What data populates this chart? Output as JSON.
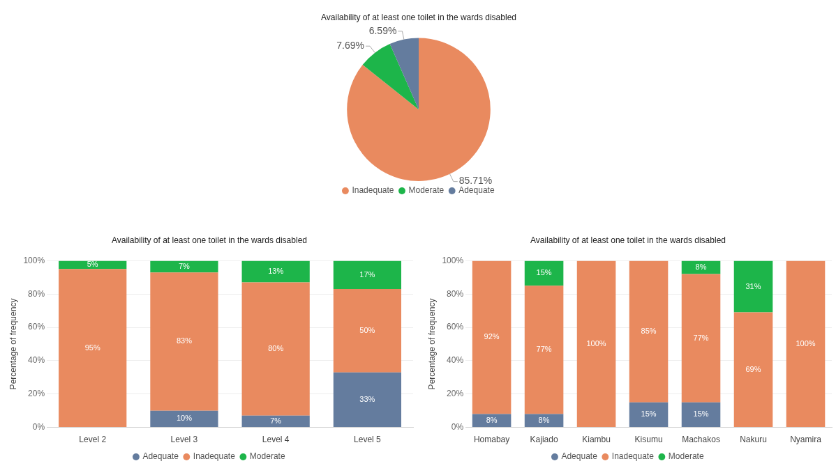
{
  "chart_data": [
    {
      "type": "pie",
      "title": "Availability of at least one toilet in the wards disabled",
      "categories": [
        "Inadequate",
        "Moderate",
        "Adequate"
      ],
      "values": [
        85.71,
        7.69,
        6.59
      ],
      "colors": [
        "#e98a5f",
        "#1db54a",
        "#647c9e"
      ],
      "value_labels": [
        "85.71%",
        "7.69%",
        "6.59%"
      ],
      "legend": "bottom"
    },
    {
      "type": "bar",
      "stacked": true,
      "title": "Availability of at least one toilet in the wards disabled",
      "ylabel": "Percentage of frequency",
      "categories": [
        "Level 2",
        "Level 3",
        "Level 4",
        "Level 5"
      ],
      "ylim": [
        0,
        100
      ],
      "yticks": [
        {
          "value": 0,
          "label": "0%"
        },
        {
          "value": 20,
          "label": "20%"
        },
        {
          "value": 40,
          "label": "40%"
        },
        {
          "value": 60,
          "label": "60%"
        },
        {
          "value": 80,
          "label": "80%"
        },
        {
          "value": 100,
          "label": "100%"
        }
      ],
      "grid": "y",
      "legend": "bottom",
      "series": [
        {
          "name": "Adequate",
          "color": "#647c9e",
          "values": [
            null,
            10,
            7,
            33
          ],
          "value_labels": [
            null,
            "10%",
            "7%",
            "33%"
          ]
        },
        {
          "name": "Inadequate",
          "color": "#e98a5f",
          "values": [
            95,
            83,
            80,
            50
          ],
          "value_labels": [
            "95%",
            "83%",
            "80%",
            "50%"
          ]
        },
        {
          "name": "Moderate",
          "color": "#1db54a",
          "values": [
            5,
            7,
            13,
            17
          ],
          "value_labels": [
            "5%",
            "7%",
            "13%",
            "17%"
          ]
        }
      ]
    },
    {
      "type": "bar",
      "stacked": true,
      "title": "Availability of at least one toilet in the wards disabled",
      "ylabel": "Percentage of frequency",
      "categories": [
        "Homabay",
        "Kajiado",
        "Kiambu",
        "Kisumu",
        "Machakos",
        "Nakuru",
        "Nyamira"
      ],
      "ylim": [
        0,
        100
      ],
      "yticks": [
        {
          "value": 0,
          "label": "0%"
        },
        {
          "value": 20,
          "label": "20%"
        },
        {
          "value": 40,
          "label": "40%"
        },
        {
          "value": 60,
          "label": "60%"
        },
        {
          "value": 80,
          "label": "80%"
        },
        {
          "value": 100,
          "label": "100%"
        }
      ],
      "grid": "y",
      "legend": "bottom",
      "series": [
        {
          "name": "Adequate",
          "color": "#647c9e",
          "values": [
            8,
            8,
            null,
            15,
            15,
            null,
            null
          ],
          "value_labels": [
            "8%",
            "8%",
            null,
            "15%",
            "15%",
            null,
            null
          ]
        },
        {
          "name": "Inadequate",
          "color": "#e98a5f",
          "values": [
            92,
            77,
            100,
            85,
            77,
            69,
            100
          ],
          "value_labels": [
            "92%",
            "77%",
            "100%",
            "85%",
            "77%",
            "69%",
            "100%"
          ]
        },
        {
          "name": "Moderate",
          "color": "#1db54a",
          "values": [
            null,
            15,
            null,
            null,
            8,
            31,
            null
          ],
          "value_labels": [
            null,
            "15%",
            null,
            null,
            "8%",
            "31%",
            null
          ]
        }
      ]
    }
  ]
}
